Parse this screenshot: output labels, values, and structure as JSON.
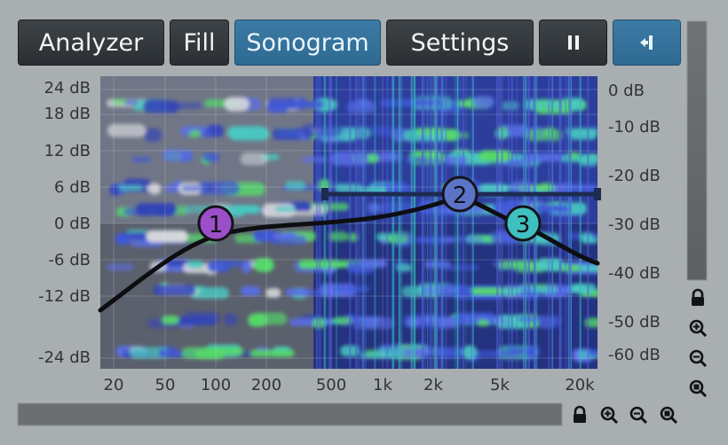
{
  "toolbar": {
    "analyzer": "Analyzer",
    "fill": "Fill",
    "sonogram": "Sonogram",
    "settings": "Settings",
    "pause_icon": "pause-icon",
    "sidechain_icon": "sidechain-icon"
  },
  "colors": {
    "accent": "#3a76a0",
    "button": "#33393d",
    "background": "#a9aeb1",
    "curve": "#0e0e12",
    "node1": "#9b4fc8",
    "node2": "#5c74c8",
    "node3": "#3fc0c0"
  },
  "left_axis": [
    "24 dB",
    "18 dB",
    "12 dB",
    "6 dB",
    "0 dB",
    "-6 dB",
    "-12 dB",
    "-24 dB"
  ],
  "right_axis": [
    "0 dB",
    "-10 dB",
    "-20 dB",
    "-30 dB",
    "-40 dB",
    "-50 dB",
    "-60 dB"
  ],
  "freq_axis": [
    "20",
    "50",
    "100",
    "200",
    "500",
    "1k",
    "2k",
    "5k",
    "20k"
  ],
  "nodes": [
    {
      "label": "1",
      "freq": 110,
      "gain_db": 0.4
    },
    {
      "label": "2",
      "freq": 2700,
      "gain_db": 4.8
    },
    {
      "label": "3",
      "freq": 7000,
      "gain_db": 0
    }
  ],
  "icons": [
    "lock-icon",
    "zoom-in-icon",
    "zoom-out-icon",
    "zoom-reset-icon"
  ]
}
